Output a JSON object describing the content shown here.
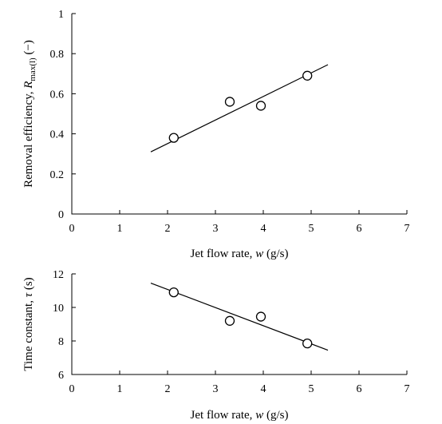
{
  "chart_data": [
    {
      "type": "scatter",
      "xlabel": "Jet  flow rate, w (g/s)",
      "xlabel_parts": [
        {
          "text": "Jet  flow rate, ",
          "style": "normal"
        },
        {
          "text": "w",
          "style": "italic"
        },
        {
          "text": " (g/s)",
          "style": "normal"
        }
      ],
      "ylabel": "Removal efficiency, Rmax(l) (−)",
      "ylabel_parts": [
        {
          "text": "Removal efficiency, ",
          "style": "normal"
        },
        {
          "text": "R",
          "style": "italic"
        },
        {
          "text": "max(l)",
          "style": "sub"
        },
        {
          "text": " (−)",
          "style": "normal"
        }
      ],
      "xlim": [
        0,
        7
      ],
      "ylim": [
        0,
        1
      ],
      "xticks": [
        "0",
        "1",
        "2",
        "3",
        "4",
        "5",
        "6",
        "7"
      ],
      "yticks": [
        "0",
        "0.2",
        "0.4",
        "0.6",
        "0.8",
        "1"
      ],
      "grid": false,
      "series": [
        {
          "marker": "open-circle",
          "points": [
            {
              "x": 2.13,
              "y": 0.38
            },
            {
              "x": 3.3,
              "y": 0.56
            },
            {
              "x": 3.95,
              "y": 0.54
            },
            {
              "x": 4.92,
              "y": 0.69
            }
          ]
        }
      ],
      "fit_line": {
        "x": [
          1.65,
          5.35
        ],
        "y": [
          0.31,
          0.745
        ]
      }
    },
    {
      "type": "scatter",
      "xlabel": "Jet  flow rate, w (g/s)",
      "xlabel_parts": [
        {
          "text": "Jet  flow rate, ",
          "style": "normal"
        },
        {
          "text": "w",
          "style": "italic"
        },
        {
          "text": " (g/s)",
          "style": "normal"
        }
      ],
      "ylabel": "Time constant, τ (s)",
      "ylabel_parts": [
        {
          "text": "Time constant, ",
          "style": "normal"
        },
        {
          "text": "τ",
          "style": "italic"
        },
        {
          "text": " (s)",
          "style": "normal"
        }
      ],
      "xlim": [
        0,
        7
      ],
      "ylim": [
        6,
        12
      ],
      "xticks": [
        "0",
        "1",
        "2",
        "3",
        "4",
        "5",
        "6",
        "7"
      ],
      "yticks": [
        "6",
        "8",
        "10",
        "12"
      ],
      "grid": false,
      "series": [
        {
          "marker": "open-circle",
          "points": [
            {
              "x": 2.13,
              "y": 10.9
            },
            {
              "x": 3.3,
              "y": 9.2
            },
            {
              "x": 3.95,
              "y": 9.45
            },
            {
              "x": 4.92,
              "y": 7.85
            }
          ]
        }
      ],
      "fit_line": {
        "x": [
          1.65,
          5.35
        ],
        "y": [
          11.45,
          7.45
        ]
      }
    }
  ]
}
